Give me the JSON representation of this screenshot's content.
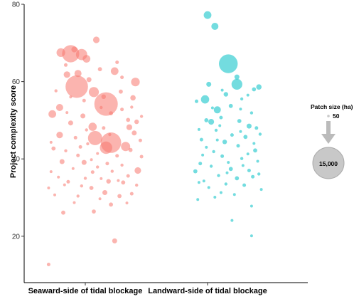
{
  "chart_data": {
    "type": "scatter",
    "ylabel": "Project complexity score",
    "xlabel": "",
    "categories": [
      "Seaward-side of tidal blockage",
      "Landward-side of tidal blockage"
    ],
    "ylim": [
      8,
      80
    ],
    "yticks": [
      20,
      40,
      60,
      80
    ],
    "grid": false,
    "legend": {
      "title": "Patch size (ha)",
      "entries": [
        {
          "label": "50",
          "size": 50
        },
        {
          "label": "15,000",
          "size": 15000
        }
      ],
      "placement": "right"
    },
    "colors": {
      "seaward": "#f8766d",
      "landward": "#00bfc4",
      "legend_bubble": "#c8c8c8",
      "arrow": "#bbbbbb"
    },
    "series": [
      {
        "name": "Seaward-side of tidal blockage",
        "category": 0,
        "color": "#f8766d",
        "points": [
          {
            "x": 0.8,
            "y": 67.5,
            "s": 900
          },
          {
            "x": 0.88,
            "y": 67.2,
            "s": 3500
          },
          {
            "x": 0.97,
            "y": 67.0,
            "s": 1500
          },
          {
            "x": 1.01,
            "y": 65.9,
            "s": 700
          },
          {
            "x": 0.91,
            "y": 68.3,
            "s": 400
          },
          {
            "x": 1.09,
            "y": 70.8,
            "s": 500
          },
          {
            "x": 0.84,
            "y": 64.3,
            "s": 150
          },
          {
            "x": 1.26,
            "y": 65.0,
            "s": 150
          },
          {
            "x": 0.93,
            "y": 58.7,
            "s": 6000
          },
          {
            "x": 1.17,
            "y": 54.2,
            "s": 6500
          },
          {
            "x": 1.07,
            "y": 57.3,
            "s": 1200
          },
          {
            "x": 0.85,
            "y": 61.8,
            "s": 500
          },
          {
            "x": 0.94,
            "y": 62.1,
            "s": 600
          },
          {
            "x": 1.24,
            "y": 62.7,
            "s": 700
          },
          {
            "x": 1.41,
            "y": 59.9,
            "s": 900
          },
          {
            "x": 1.29,
            "y": 57.4,
            "s": 200
          },
          {
            "x": 1.39,
            "y": 55.8,
            "s": 350
          },
          {
            "x": 1.03,
            "y": 60.5,
            "s": 300
          },
          {
            "x": 1.15,
            "y": 56.1,
            "s": 250
          },
          {
            "x": 1.35,
            "y": 50.1,
            "s": 200
          },
          {
            "x": 0.79,
            "y": 53.3,
            "s": 600
          },
          {
            "x": 0.98,
            "y": 51.1,
            "s": 300
          },
          {
            "x": 1.06,
            "y": 48.3,
            "s": 800
          },
          {
            "x": 0.73,
            "y": 51.6,
            "s": 700
          },
          {
            "x": 1.21,
            "y": 51.8,
            "s": 200
          },
          {
            "x": 1.42,
            "y": 49.6,
            "s": 250
          },
          {
            "x": 1.08,
            "y": 45.4,
            "s": 2400
          },
          {
            "x": 1.21,
            "y": 44.2,
            "s": 5000
          },
          {
            "x": 1.17,
            "y": 42.9,
            "s": 1800
          },
          {
            "x": 1.33,
            "y": 43.2,
            "s": 1000
          },
          {
            "x": 0.88,
            "y": 49.3,
            "s": 300
          },
          {
            "x": 0.79,
            "y": 46.2,
            "s": 500
          },
          {
            "x": 1.02,
            "y": 43.9,
            "s": 120
          },
          {
            "x": 1.36,
            "y": 48.2,
            "s": 400
          },
          {
            "x": 1.4,
            "y": 46.7,
            "s": 300
          },
          {
            "x": 0.94,
            "y": 40.9,
            "s": 150
          },
          {
            "x": 0.74,
            "y": 42.7,
            "s": 200
          },
          {
            "x": 0.81,
            "y": 39.3,
            "s": 300
          },
          {
            "x": 0.99,
            "y": 39.1,
            "s": 300
          },
          {
            "x": 1.1,
            "y": 41.4,
            "s": 100
          },
          {
            "x": 1.26,
            "y": 40.8,
            "s": 150
          },
          {
            "x": 1.37,
            "y": 42.3,
            "s": 200
          },
          {
            "x": 1.43,
            "y": 37.0,
            "s": 500
          },
          {
            "x": 0.72,
            "y": 36.7,
            "s": 100
          },
          {
            "x": 0.86,
            "y": 34.1,
            "s": 150
          },
          {
            "x": 0.7,
            "y": 32.5,
            "s": 100
          },
          {
            "x": 0.97,
            "y": 33.0,
            "s": 120
          },
          {
            "x": 1.05,
            "y": 32.5,
            "s": 200
          },
          {
            "x": 1.19,
            "y": 34.2,
            "s": 250
          },
          {
            "x": 1.31,
            "y": 33.9,
            "s": 200
          },
          {
            "x": 1.16,
            "y": 31.3,
            "s": 300
          },
          {
            "x": 1.38,
            "y": 31.0,
            "s": 150
          },
          {
            "x": 1.21,
            "y": 28.2,
            "s": 200
          },
          {
            "x": 1.28,
            "y": 30.4,
            "s": 200
          },
          {
            "x": 0.82,
            "y": 26.1,
            "s": 200
          },
          {
            "x": 1.07,
            "y": 26.4,
            "s": 200
          },
          {
            "x": 0.91,
            "y": 28.7,
            "s": 100
          },
          {
            "x": 1.12,
            "y": 29.7,
            "s": 100
          },
          {
            "x": 1.24,
            "y": 18.8,
            "s": 300
          },
          {
            "x": 0.7,
            "y": 12.7,
            "s": 150
          },
          {
            "x": 1.12,
            "y": 63.2,
            "s": 200
          },
          {
            "x": 1.3,
            "y": 61.1,
            "s": 150
          },
          {
            "x": 0.76,
            "y": 57.6,
            "s": 120
          },
          {
            "x": 0.99,
            "y": 55.1,
            "s": 150
          },
          {
            "x": 1.13,
            "y": 53.3,
            "s": 120
          },
          {
            "x": 1.3,
            "y": 52.8,
            "s": 150
          },
          {
            "x": 0.85,
            "y": 52.0,
            "s": 100
          },
          {
            "x": 1.46,
            "y": 51.0,
            "s": 120
          },
          {
            "x": 0.92,
            "y": 45.5,
            "s": 150
          },
          {
            "x": 1.01,
            "y": 47.5,
            "s": 120
          },
          {
            "x": 1.15,
            "y": 48.0,
            "s": 150
          },
          {
            "x": 1.45,
            "y": 44.8,
            "s": 150
          },
          {
            "x": 0.72,
            "y": 44.3,
            "s": 100
          },
          {
            "x": 0.84,
            "y": 42.1,
            "s": 120
          },
          {
            "x": 1.18,
            "y": 38.8,
            "s": 150
          },
          {
            "x": 1.3,
            "y": 38.4,
            "s": 120
          },
          {
            "x": 0.9,
            "y": 37.5,
            "s": 100
          },
          {
            "x": 1.06,
            "y": 36.6,
            "s": 150
          },
          {
            "x": 1.22,
            "y": 36.8,
            "s": 120
          },
          {
            "x": 1.35,
            "y": 35.6,
            "s": 150
          },
          {
            "x": 0.78,
            "y": 35.3,
            "s": 100
          },
          {
            "x": 1.0,
            "y": 35.0,
            "s": 120
          },
          {
            "x": 1.13,
            "y": 34.9,
            "s": 100
          },
          {
            "x": 1.42,
            "y": 33.2,
            "s": 120
          },
          {
            "x": 0.75,
            "y": 30.7,
            "s": 100
          },
          {
            "x": 0.94,
            "y": 30.4,
            "s": 120
          },
          {
            "x": 1.34,
            "y": 28.6,
            "s": 100
          },
          {
            "x": 1.46,
            "y": 40.6,
            "s": 150
          },
          {
            "x": 1.05,
            "y": 39.8,
            "s": 100
          },
          {
            "x": 0.88,
            "y": 56.0,
            "s": 100
          },
          {
            "x": 1.38,
            "y": 53.4,
            "s": 120
          },
          {
            "x": 1.2,
            "y": 46.3,
            "s": 120
          },
          {
            "x": 0.96,
            "y": 43.1,
            "s": 150
          },
          {
            "x": 1.1,
            "y": 37.9,
            "s": 120
          },
          {
            "x": 1.27,
            "y": 34.4,
            "s": 100
          },
          {
            "x": 0.83,
            "y": 33.3,
            "s": 100
          }
        ]
      },
      {
        "name": "Landward-side of tidal blockage",
        "category": 1,
        "color": "#00bfc4",
        "points": [
          {
            "x": 2.0,
            "y": 77.2,
            "s": 700
          },
          {
            "x": 2.06,
            "y": 74.3,
            "s": 600
          },
          {
            "x": 2.17,
            "y": 64.6,
            "s": 4200
          },
          {
            "x": 2.24,
            "y": 59.3,
            "s": 1400
          },
          {
            "x": 1.98,
            "y": 55.4,
            "s": 800
          },
          {
            "x": 2.08,
            "y": 52.7,
            "s": 600
          },
          {
            "x": 2.24,
            "y": 61.2,
            "s": 300
          },
          {
            "x": 2.01,
            "y": 59.3,
            "s": 300
          },
          {
            "x": 2.42,
            "y": 58.6,
            "s": 350
          },
          {
            "x": 2.38,
            "y": 58.0,
            "s": 200
          },
          {
            "x": 2.15,
            "y": 56.7,
            "s": 250
          },
          {
            "x": 2.28,
            "y": 55.5,
            "s": 120
          },
          {
            "x": 2.33,
            "y": 56.5,
            "s": 100
          },
          {
            "x": 1.91,
            "y": 54.9,
            "s": 150
          },
          {
            "x": 2.19,
            "y": 53.7,
            "s": 200
          },
          {
            "x": 2.36,
            "y": 51.9,
            "s": 120
          },
          {
            "x": 2.03,
            "y": 49.6,
            "s": 400
          },
          {
            "x": 1.99,
            "y": 50.0,
            "s": 200
          },
          {
            "x": 2.11,
            "y": 50.7,
            "s": 150
          },
          {
            "x": 2.26,
            "y": 49.8,
            "s": 200
          },
          {
            "x": 2.34,
            "y": 48.5,
            "s": 300
          },
          {
            "x": 2.4,
            "y": 48.0,
            "s": 150
          },
          {
            "x": 1.93,
            "y": 47.6,
            "s": 100
          },
          {
            "x": 2.07,
            "y": 47.4,
            "s": 120
          },
          {
            "x": 2.2,
            "y": 46.2,
            "s": 150
          },
          {
            "x": 2.31,
            "y": 45.7,
            "s": 200
          },
          {
            "x": 1.95,
            "y": 45.0,
            "s": 150
          },
          {
            "x": 2.14,
            "y": 44.4,
            "s": 250
          },
          {
            "x": 2.25,
            "y": 43.4,
            "s": 150
          },
          {
            "x": 2.39,
            "y": 42.2,
            "s": 200
          },
          {
            "x": 2.05,
            "y": 41.9,
            "s": 120
          },
          {
            "x": 2.12,
            "y": 40.7,
            "s": 150
          },
          {
            "x": 2.28,
            "y": 40.1,
            "s": 120
          },
          {
            "x": 1.94,
            "y": 38.8,
            "s": 150
          },
          {
            "x": 2.03,
            "y": 38.1,
            "s": 120
          },
          {
            "x": 2.19,
            "y": 37.4,
            "s": 200
          },
          {
            "x": 2.34,
            "y": 37.0,
            "s": 150
          },
          {
            "x": 2.42,
            "y": 36.1,
            "s": 120
          },
          {
            "x": 1.9,
            "y": 36.8,
            "s": 200
          },
          {
            "x": 2.09,
            "y": 35.7,
            "s": 120
          },
          {
            "x": 2.24,
            "y": 35.0,
            "s": 200
          },
          {
            "x": 2.37,
            "y": 35.4,
            "s": 150
          },
          {
            "x": 1.97,
            "y": 34.3,
            "s": 100
          },
          {
            "x": 2.15,
            "y": 33.5,
            "s": 120
          },
          {
            "x": 2.3,
            "y": 33.2,
            "s": 150
          },
          {
            "x": 2.01,
            "y": 32.6,
            "s": 100
          },
          {
            "x": 2.44,
            "y": 32.1,
            "s": 100
          },
          {
            "x": 2.11,
            "y": 31.3,
            "s": 100
          },
          {
            "x": 2.22,
            "y": 30.8,
            "s": 100
          },
          {
            "x": 1.92,
            "y": 29.5,
            "s": 100
          },
          {
            "x": 2.36,
            "y": 27.8,
            "s": 100
          },
          {
            "x": 2.2,
            "y": 24.1,
            "s": 100
          },
          {
            "x": 2.36,
            "y": 20.1,
            "s": 100
          },
          {
            "x": 2.1,
            "y": 48.6,
            "s": 100
          },
          {
            "x": 2.27,
            "y": 47.1,
            "s": 100
          },
          {
            "x": 2.43,
            "y": 46.4,
            "s": 120
          },
          {
            "x": 1.99,
            "y": 43.0,
            "s": 100
          },
          {
            "x": 2.33,
            "y": 41.3,
            "s": 100
          },
          {
            "x": 2.17,
            "y": 39.1,
            "s": 100
          },
          {
            "x": 1.96,
            "y": 41.0,
            "s": 100
          },
          {
            "x": 2.08,
            "y": 44.9,
            "s": 100
          },
          {
            "x": 2.41,
            "y": 39.4,
            "s": 100
          },
          {
            "x": 2.27,
            "y": 52.9,
            "s": 100
          },
          {
            "x": 2.12,
            "y": 57.8,
            "s": 100
          },
          {
            "x": 2.04,
            "y": 53.2,
            "s": 100
          },
          {
            "x": 2.38,
            "y": 44.0,
            "s": 100
          },
          {
            "x": 2.16,
            "y": 36.4,
            "s": 100
          },
          {
            "x": 1.93,
            "y": 33.9,
            "s": 100
          },
          {
            "x": 2.29,
            "y": 38.3,
            "s": 100
          },
          {
            "x": 2.06,
            "y": 30.1,
            "s": 100
          }
        ]
      }
    ]
  }
}
